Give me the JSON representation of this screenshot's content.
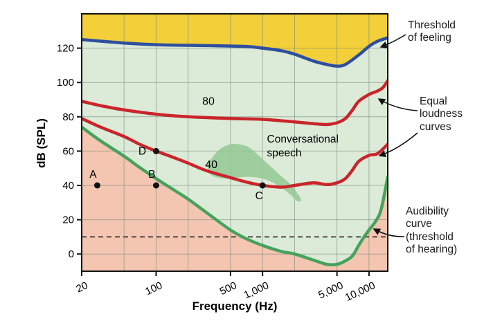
{
  "figure": {
    "ylabel": "dB (SPL)",
    "xlabel": "Frequency (Hz)"
  },
  "annotations": {
    "threshold_of_feeling": "Threshold\nof feeling",
    "equal_loudness_curves": "Equal\nloudness\ncurves",
    "audibility_curve": "Audibility\ncurve\n(threshold\nof hearing)"
  },
  "chart_data": {
    "type": "line",
    "title": "",
    "xlabel": "Frequency (Hz)",
    "ylabel": "dB (SPL)",
    "x_scale": "log",
    "xlim": [
      20,
      15000
    ],
    "ylim": [
      -10,
      140
    ],
    "grid": true,
    "x_ticks": [
      {
        "value": 20,
        "label": "20"
      },
      {
        "value": 100,
        "label": "100"
      },
      {
        "value": 500,
        "label": "500"
      },
      {
        "value": 1000,
        "label": "1,000"
      },
      {
        "value": 5000,
        "label": "5,000"
      },
      {
        "value": 10000,
        "label": "10,000"
      }
    ],
    "y_ticks": [
      0,
      20,
      40,
      60,
      80,
      100,
      120
    ],
    "x_gridlines": [
      50,
      100,
      200,
      500,
      1000,
      2000,
      5000,
      10000
    ],
    "dashed_line_db": 10,
    "regions": {
      "above_feeling_color": "#f3cf3a",
      "audible_color": "#dcead8",
      "inaudible_color": "#f4c6b2"
    },
    "series": [
      {
        "name": "Threshold of feeling",
        "color": "#2e4f9e",
        "width": 4.5,
        "points": [
          [
            20,
            125
          ],
          [
            50,
            123
          ],
          [
            100,
            122
          ],
          [
            300,
            121.5
          ],
          [
            700,
            121
          ],
          [
            1000,
            120
          ],
          [
            1500,
            118.5
          ],
          [
            2000,
            116.5
          ],
          [
            3000,
            112.5
          ],
          [
            4000,
            110.5
          ],
          [
            5000,
            109.5
          ],
          [
            6000,
            110.5
          ],
          [
            8000,
            116
          ],
          [
            10000,
            121
          ],
          [
            12000,
            124
          ],
          [
            15000,
            126
          ]
        ]
      },
      {
        "name": "Equal loudness 80",
        "color": "#c9252b",
        "width": 4.5,
        "points": [
          [
            20,
            89
          ],
          [
            30,
            86.5
          ],
          [
            50,
            84
          ],
          [
            100,
            81.5
          ],
          [
            200,
            80
          ],
          [
            500,
            79
          ],
          [
            1000,
            78.5
          ],
          [
            2000,
            77
          ],
          [
            3000,
            76
          ],
          [
            4000,
            75.5
          ],
          [
            5000,
            76.5
          ],
          [
            6000,
            79
          ],
          [
            7000,
            84
          ],
          [
            8000,
            89
          ],
          [
            10000,
            93
          ],
          [
            12000,
            95
          ],
          [
            13500,
            97
          ],
          [
            15000,
            101
          ]
        ]
      },
      {
        "name": "Equal loudness 40",
        "color": "#c9252b",
        "width": 4.5,
        "points": [
          [
            20,
            79
          ],
          [
            30,
            74
          ],
          [
            50,
            68.5
          ],
          [
            70,
            64
          ],
          [
            100,
            60
          ],
          [
            150,
            56
          ],
          [
            200,
            53
          ],
          [
            300,
            48.5
          ],
          [
            500,
            44.5
          ],
          [
            700,
            42
          ],
          [
            1000,
            40
          ],
          [
            1500,
            39
          ],
          [
            2000,
            40
          ],
          [
            3000,
            41.5
          ],
          [
            4000,
            40.5
          ],
          [
            5000,
            41.5
          ],
          [
            6000,
            44
          ],
          [
            7000,
            49
          ],
          [
            8000,
            54
          ],
          [
            10000,
            57.5
          ],
          [
            12000,
            58.5
          ],
          [
            15000,
            64
          ]
        ]
      },
      {
        "name": "Audibility curve (threshold of hearing)",
        "color": "#46a25c",
        "width": 4.5,
        "points": [
          [
            20,
            74
          ],
          [
            30,
            66
          ],
          [
            50,
            57
          ],
          [
            70,
            50.5
          ],
          [
            100,
            44
          ],
          [
            150,
            37
          ],
          [
            200,
            32
          ],
          [
            300,
            24
          ],
          [
            500,
            14
          ],
          [
            700,
            9
          ],
          [
            1000,
            5
          ],
          [
            1500,
            1.5
          ],
          [
            2000,
            0
          ],
          [
            3000,
            -3.5
          ],
          [
            4000,
            -6
          ],
          [
            5000,
            -6
          ],
          [
            6000,
            -4
          ],
          [
            7000,
            -1
          ],
          [
            8000,
            5
          ],
          [
            9000,
            10
          ],
          [
            10000,
            14
          ],
          [
            11500,
            19
          ],
          [
            13000,
            26
          ],
          [
            15000,
            45
          ]
        ]
      }
    ],
    "marked_points": [
      {
        "label": "A",
        "f": 28,
        "db": 40
      },
      {
        "label": "B",
        "f": 100,
        "db": 40
      },
      {
        "label": "C",
        "f": 1000,
        "db": 40
      },
      {
        "label": "D",
        "f": 100,
        "db": 60
      }
    ],
    "curve_labels": [
      {
        "text": "80",
        "f": 310,
        "db": 87
      },
      {
        "text": "40",
        "f": 330,
        "db": 50
      }
    ],
    "speech_region": {
      "label": "Conversational\nspeech",
      "label_pos": {
        "f": 1100,
        "db": 65
      },
      "color": "#93c994",
      "outline": [
        [
          300,
          52
        ],
        [
          380,
          60
        ],
        [
          500,
          64
        ],
        [
          700,
          63
        ],
        [
          900,
          58
        ],
        [
          1100,
          53
        ],
        [
          1400,
          47
        ],
        [
          1800,
          41
        ],
        [
          2200,
          34
        ],
        [
          2300,
          31
        ],
        [
          2100,
          31
        ],
        [
          1800,
          35
        ],
        [
          1400,
          40
        ],
        [
          1000,
          44
        ],
        [
          700,
          45
        ],
        [
          450,
          44
        ],
        [
          330,
          46
        ]
      ]
    }
  }
}
